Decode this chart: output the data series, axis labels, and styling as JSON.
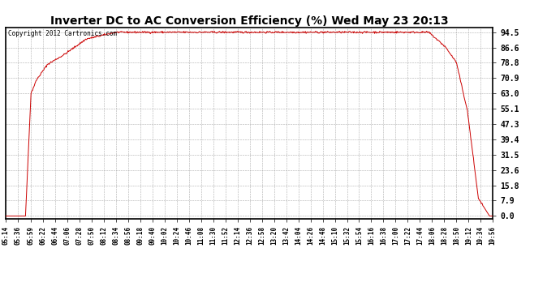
{
  "title": "Inverter DC to AC Conversion Efficiency (%) Wed May 23 20:13",
  "copyright_text": "Copyright 2012 Cartronics.com",
  "line_color": "#cc0000",
  "bg_color": "#ffffff",
  "plot_bg_color": "#ffffff",
  "grid_color": "#999999",
  "yticks": [
    0.0,
    7.9,
    15.8,
    23.6,
    31.5,
    39.4,
    47.3,
    55.1,
    63.0,
    70.9,
    78.8,
    86.6,
    94.5
  ],
  "ylim": [
    0.0,
    94.5
  ],
  "tick_labels": [
    "05:14",
    "05:36",
    "05:59",
    "06:22",
    "06:44",
    "07:06",
    "07:28",
    "07:50",
    "08:12",
    "08:34",
    "08:56",
    "09:18",
    "09:40",
    "10:02",
    "10:24",
    "10:46",
    "11:08",
    "11:30",
    "11:52",
    "12:14",
    "12:36",
    "12:58",
    "13:20",
    "13:42",
    "14:04",
    "14:26",
    "14:48",
    "15:10",
    "15:32",
    "15:54",
    "16:16",
    "16:38",
    "17:00",
    "17:22",
    "17:44",
    "18:06",
    "18:28",
    "18:50",
    "19:12",
    "19:34",
    "19:56"
  ]
}
